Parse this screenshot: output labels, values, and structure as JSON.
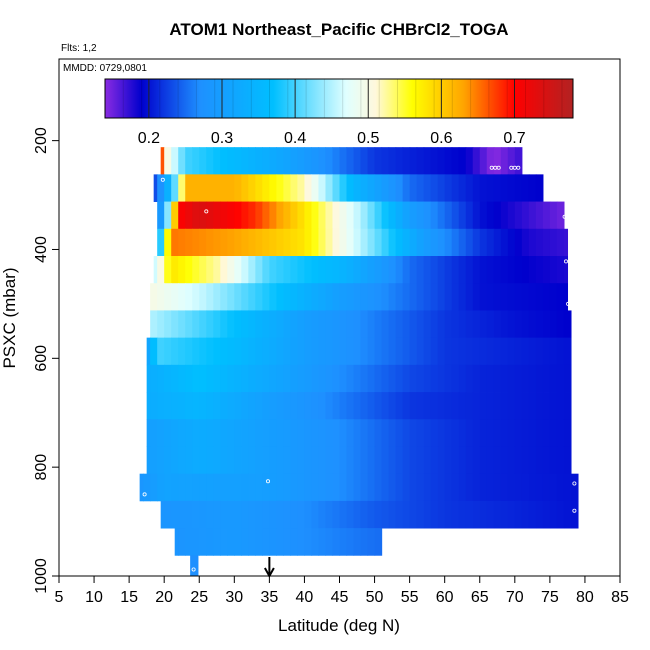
{
  "chart_data": {
    "type": "heatmap",
    "title": "ATOM1 Northeast_Pacific CHBrCl2_TOGA",
    "flights_text": "Flts: 1,2",
    "date_text": "MMDD: 0729,0801",
    "xlabel": "Latitude (deg N)",
    "ylabel": "PSXC (mbar)",
    "xlim": [
      5,
      85
    ],
    "ylim": [
      1000,
      50
    ],
    "y_reversed": true,
    "x_ticks": [
      5,
      10,
      15,
      20,
      25,
      30,
      35,
      40,
      45,
      50,
      55,
      60,
      65,
      70,
      75,
      80,
      85
    ],
    "y_ticks": [
      200,
      400,
      600,
      800,
      1000
    ],
    "grid": false,
    "colorbar": {
      "placement": "top",
      "range": [
        0.14,
        0.78
      ],
      "ticks": [
        0.2,
        0.3,
        0.4,
        0.5,
        0.6,
        0.7
      ],
      "tick_labels": [
        "0.2",
        "0.3",
        "0.4",
        "0.5",
        "0.6",
        "0.7"
      ],
      "colors": [
        "#8a2be2",
        "#0000cd",
        "#1e90ff",
        "#00bfff",
        "#e0ffff",
        "#fff8dc",
        "#ffff00",
        "#ffa500",
        "#ff0000",
        "#b22222"
      ],
      "stops": [
        0.14,
        0.19,
        0.27,
        0.37,
        0.47,
        0.51,
        0.56,
        0.63,
        0.7,
        0.78
      ]
    },
    "rows": [
      {
        "p_top": 212,
        "p_bot": 262,
        "lat_start": 19.5,
        "lat_end": 71,
        "anchors": [
          [
            19.5,
            0.72
          ],
          [
            20.5,
            0.5
          ],
          [
            23,
            0.4
          ],
          [
            35,
            0.33
          ],
          [
            50,
            0.22
          ],
          [
            63,
            0.19
          ],
          [
            67,
            0.14
          ],
          [
            71,
            0.17
          ]
        ]
      },
      {
        "p_top": 262,
        "p_bot": 312,
        "lat_start": 18.5,
        "lat_end": 74,
        "anchors": [
          [
            18.5,
            0.22
          ],
          [
            20,
            0.3
          ],
          [
            22,
            0.45
          ],
          [
            23,
            0.62
          ],
          [
            30,
            0.62
          ],
          [
            40,
            0.52
          ],
          [
            47,
            0.35
          ],
          [
            55,
            0.25
          ],
          [
            65,
            0.2
          ],
          [
            74,
            0.19
          ]
        ]
      },
      {
        "p_top": 312,
        "p_bot": 362,
        "lat_start": 19,
        "lat_end": 77,
        "anchors": [
          [
            19,
            0.22
          ],
          [
            21,
            0.5
          ],
          [
            22,
            0.7
          ],
          [
            25,
            0.74
          ],
          [
            33,
            0.68
          ],
          [
            40,
            0.58
          ],
          [
            48,
            0.45
          ],
          [
            55,
            0.3
          ],
          [
            65,
            0.2
          ],
          [
            72,
            0.17
          ],
          [
            77,
            0.15
          ]
        ]
      },
      {
        "p_top": 362,
        "p_bot": 412,
        "lat_start": 19,
        "lat_end": 77.5,
        "anchors": [
          [
            19,
            0.3
          ],
          [
            21,
            0.65
          ],
          [
            30,
            0.63
          ],
          [
            40,
            0.58
          ],
          [
            50,
            0.42
          ],
          [
            57,
            0.3
          ],
          [
            65,
            0.22
          ],
          [
            72,
            0.18
          ],
          [
            77.5,
            0.17
          ]
        ]
      },
      {
        "p_top": 412,
        "p_bot": 462,
        "lat_start": 18.5,
        "lat_end": 77.5,
        "anchors": [
          [
            18.5,
            0.45
          ],
          [
            21,
            0.58
          ],
          [
            28,
            0.52
          ],
          [
            35,
            0.4
          ],
          [
            45,
            0.35
          ],
          [
            55,
            0.25
          ],
          [
            65,
            0.2
          ],
          [
            77.5,
            0.18
          ]
        ]
      },
      {
        "p_top": 462,
        "p_bot": 512,
        "lat_start": 18,
        "lat_end": 77.5,
        "anchors": [
          [
            18,
            0.5
          ],
          [
            25,
            0.46
          ],
          [
            35,
            0.38
          ],
          [
            45,
            0.3
          ],
          [
            55,
            0.25
          ],
          [
            65,
            0.2
          ],
          [
            77.5,
            0.19
          ]
        ]
      },
      {
        "p_top": 512,
        "p_bot": 562,
        "lat_start": 18,
        "lat_end": 78,
        "anchors": [
          [
            18,
            0.45
          ],
          [
            30,
            0.37
          ],
          [
            40,
            0.3
          ],
          [
            50,
            0.26
          ],
          [
            60,
            0.22
          ],
          [
            70,
            0.2
          ],
          [
            78,
            0.19
          ]
        ]
      },
      {
        "p_top": 562,
        "p_bot": 612,
        "lat_start": 17.5,
        "lat_end": 78,
        "anchors": [
          [
            17.5,
            0.3
          ],
          [
            19,
            0.4
          ],
          [
            30,
            0.36
          ],
          [
            40,
            0.3
          ],
          [
            50,
            0.26
          ],
          [
            60,
            0.22
          ],
          [
            78,
            0.2
          ]
        ]
      },
      {
        "p_top": 612,
        "p_bot": 662,
        "lat_start": 17.5,
        "lat_end": 78,
        "anchors": [
          [
            17.5,
            0.33
          ],
          [
            25,
            0.37
          ],
          [
            35,
            0.32
          ],
          [
            45,
            0.27
          ],
          [
            55,
            0.23
          ],
          [
            65,
            0.21
          ],
          [
            78,
            0.2
          ]
        ]
      },
      {
        "p_top": 662,
        "p_bot": 712,
        "lat_start": 17.5,
        "lat_end": 78,
        "anchors": [
          [
            17.5,
            0.33
          ],
          [
            25,
            0.35
          ],
          [
            35,
            0.3
          ],
          [
            45,
            0.26
          ],
          [
            55,
            0.22
          ],
          [
            65,
            0.21
          ],
          [
            78,
            0.2
          ]
        ]
      },
      {
        "p_top": 712,
        "p_bot": 762,
        "lat_start": 17.5,
        "lat_end": 78,
        "anchors": [
          [
            17.5,
            0.3
          ],
          [
            25,
            0.33
          ],
          [
            35,
            0.3
          ],
          [
            45,
            0.27
          ],
          [
            55,
            0.23
          ],
          [
            65,
            0.21
          ],
          [
            78,
            0.2
          ]
        ]
      },
      {
        "p_top": 762,
        "p_bot": 812,
        "lat_start": 17.5,
        "lat_end": 78,
        "anchors": [
          [
            17.5,
            0.3
          ],
          [
            25,
            0.33
          ],
          [
            35,
            0.3
          ],
          [
            45,
            0.27
          ],
          [
            55,
            0.23
          ],
          [
            65,
            0.21
          ],
          [
            78,
            0.2
          ]
        ]
      },
      {
        "p_top": 812,
        "p_bot": 862,
        "lat_start": 16.5,
        "lat_end": 79,
        "anchors": [
          [
            16.5,
            0.28
          ],
          [
            20,
            0.31
          ],
          [
            35,
            0.3
          ],
          [
            45,
            0.27
          ],
          [
            55,
            0.23
          ],
          [
            65,
            0.21
          ],
          [
            79,
            0.2
          ]
        ]
      },
      {
        "p_top": 862,
        "p_bot": 912,
        "lat_start": 19.5,
        "lat_end": 79,
        "anchors": [
          [
            19.5,
            0.28
          ],
          [
            30,
            0.29
          ],
          [
            40,
            0.27
          ],
          [
            50,
            0.24
          ],
          [
            60,
            0.22
          ],
          [
            70,
            0.21
          ],
          [
            79,
            0.2
          ]
        ]
      },
      {
        "p_top": 912,
        "p_bot": 962,
        "lat_start": 21.5,
        "lat_end": 51,
        "anchors": [
          [
            21.5,
            0.28
          ],
          [
            30,
            0.29
          ],
          [
            40,
            0.27
          ],
          [
            51,
            0.25
          ]
        ]
      },
      {
        "p_top": 962,
        "p_bot": 1000,
        "lat_start": 23.7,
        "lat_end": 24.8,
        "anchors": [
          [
            23.7,
            0.27
          ],
          [
            24.8,
            0.27
          ]
        ]
      }
    ],
    "sample_points": [
      [
        19.8,
        272
      ],
      [
        26,
        330
      ],
      [
        66.7,
        250
      ],
      [
        67.2,
        250
      ],
      [
        67.7,
        250
      ],
      [
        69.5,
        250
      ],
      [
        70,
        250
      ],
      [
        70.5,
        250
      ],
      [
        77.1,
        340
      ],
      [
        77.3,
        422
      ],
      [
        77.6,
        500
      ],
      [
        34.8,
        826
      ],
      [
        17.2,
        850
      ],
      [
        78.5,
        830
      ],
      [
        78.5,
        880
      ],
      [
        24.2,
        988
      ]
    ],
    "marker_arrow": {
      "lat": 35
    }
  }
}
